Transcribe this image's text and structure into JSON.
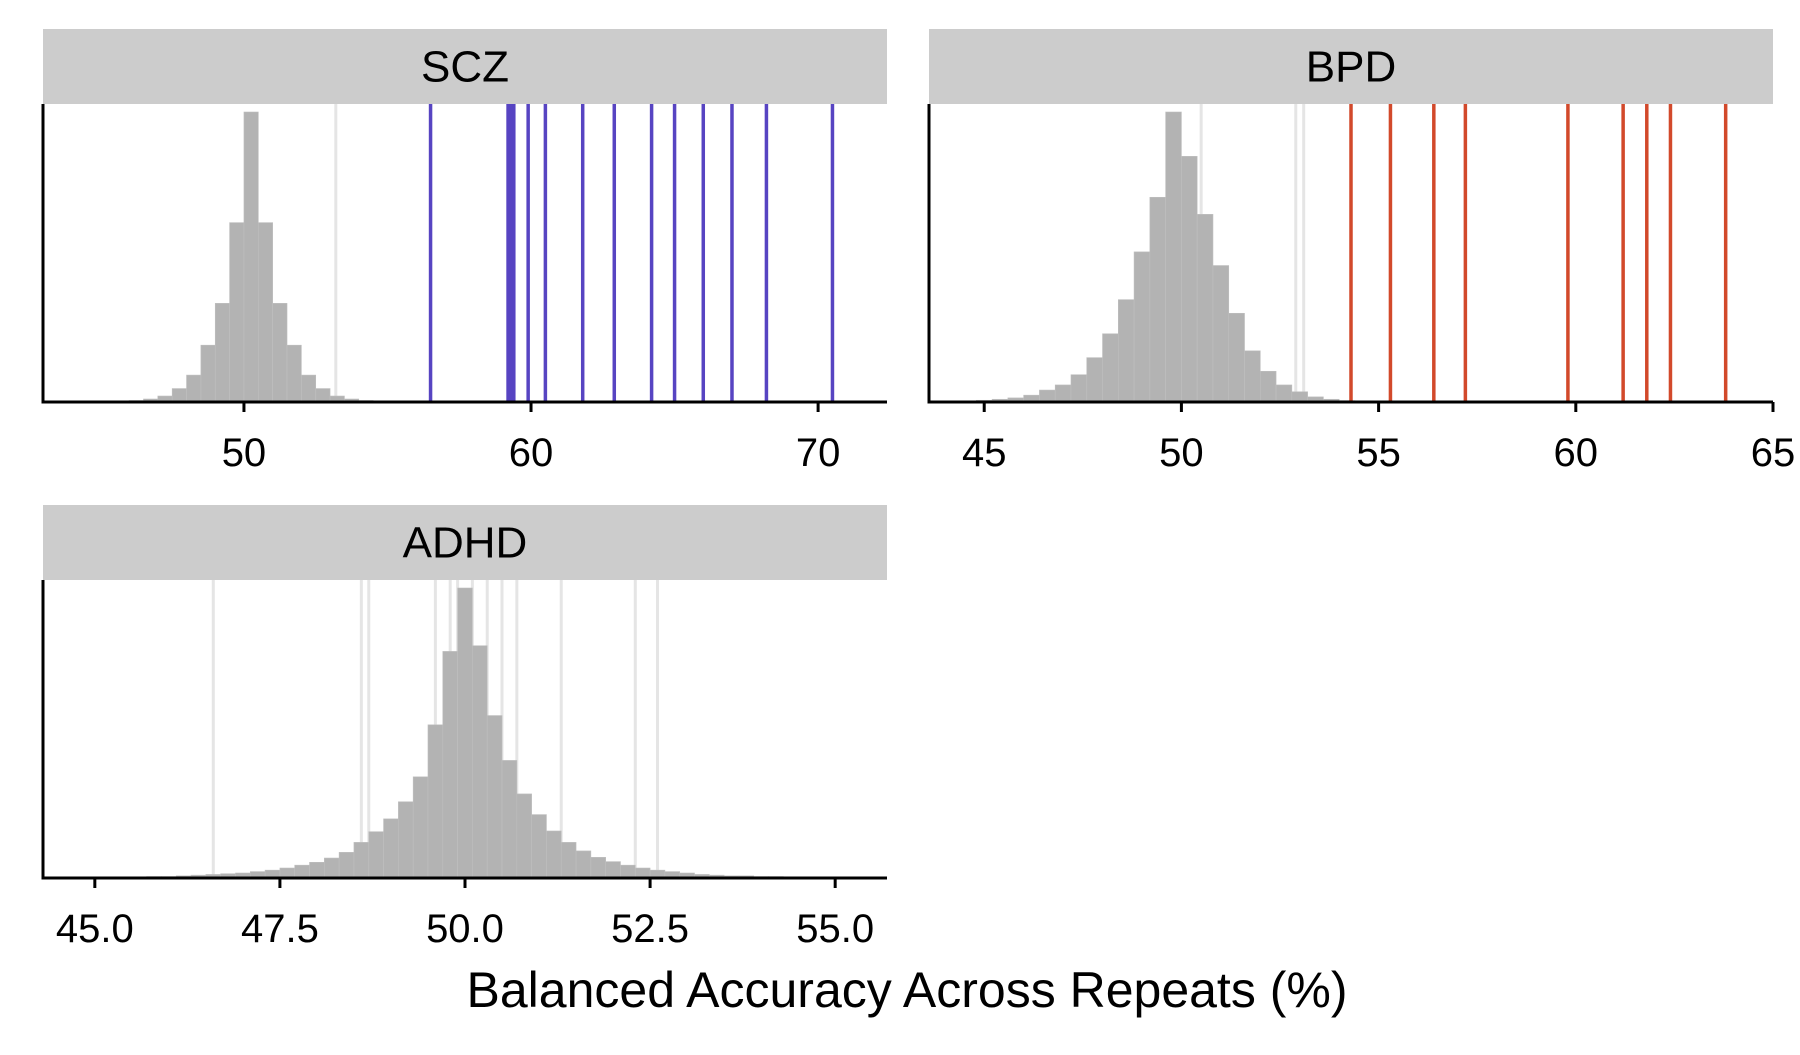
{
  "figure": {
    "xlabel": "Balanced Accuracy Across Repeats (%)"
  },
  "colors": {
    "strip": "#cccccc",
    "histogram": "#b3b3b3",
    "non_significant_line": "#e5e5e5",
    "SCZ": "#5744c2",
    "BPD": "#d2492b",
    "ADHD": "#e5e5e5"
  },
  "chart_data": [
    {
      "type": "histogram",
      "title": "SCZ",
      "xlim": [
        43,
        72.4
      ],
      "xticks": [
        50,
        60,
        70
      ],
      "xtick_labels": [
        "50",
        "60",
        "70"
      ],
      "null_distribution": {
        "bin_edges": [
          43,
          43.5,
          44,
          44.5,
          45,
          45.5,
          46,
          46.5,
          47,
          47.5,
          48,
          48.5,
          49,
          49.5,
          50,
          50.5,
          51,
          51.5,
          52,
          52.5,
          53,
          53.5,
          54,
          54.5,
          55,
          55.5,
          56,
          56.5
        ],
        "densities": [
          0,
          0,
          0,
          0,
          0.001,
          0.002,
          0.005,
          0.01,
          0.02,
          0.045,
          0.09,
          0.19,
          0.33,
          0.6,
          0.97,
          0.6,
          0.33,
          0.19,
          0.09,
          0.045,
          0.02,
          0.01,
          0.005,
          0.002,
          0.001,
          0,
          0
        ]
      },
      "null_threshold_lines": [
        53.2
      ],
      "observed_lines": [
        56.5,
        59.2,
        59.3,
        59.4,
        59.9,
        60.5,
        61.8,
        62.9,
        64.2,
        65.0,
        66.0,
        67.0,
        68.2,
        70.5
      ],
      "observed_color": "#5744c2"
    },
    {
      "type": "histogram",
      "title": "BPD",
      "xlim": [
        43.6,
        65
      ],
      "xticks": [
        45,
        50,
        55,
        60,
        65
      ],
      "xtick_labels": [
        "45",
        "50",
        "55",
        "60",
        "65"
      ],
      "null_distribution": {
        "bin_edges": [
          43.6,
          44,
          44.4,
          44.8,
          45.2,
          45.6,
          46,
          46.4,
          46.8,
          47.2,
          47.6,
          48,
          48.4,
          48.8,
          49.2,
          49.6,
          50,
          50.4,
          50.8,
          51.2,
          51.6,
          52,
          52.4,
          52.8,
          53.2,
          53.6,
          54,
          54.4,
          54.8
        ],
        "densities": [
          0,
          0.002,
          0.003,
          0.005,
          0.008,
          0.012,
          0.02,
          0.035,
          0.05,
          0.08,
          0.13,
          0.2,
          0.3,
          0.44,
          0.6,
          0.85,
          0.72,
          0.55,
          0.4,
          0.26,
          0.15,
          0.09,
          0.05,
          0.03,
          0.015,
          0.008,
          0.004,
          0.002
        ]
      },
      "null_threshold_lines": [
        50.5,
        52.9,
        53.1
      ],
      "observed_lines": [
        54.3,
        55.3,
        56.4,
        57.2,
        59.8,
        61.2,
        61.8,
        62.4,
        63.8
      ],
      "observed_color": "#d2492b"
    },
    {
      "type": "histogram",
      "title": "ADHD",
      "xlim": [
        44.3,
        55.7
      ],
      "xticks": [
        45.0,
        47.5,
        50.0,
        52.5,
        55.0
      ],
      "xtick_labels": [
        "45.0",
        "47.5",
        "50.0",
        "52.5",
        "55.0"
      ],
      "null_distribution": {
        "bin_edges": [
          44.7,
          44.9,
          45.1,
          45.3,
          45.5,
          45.7,
          45.9,
          46.1,
          46.3,
          46.5,
          46.7,
          46.9,
          47.1,
          47.3,
          47.5,
          47.7,
          47.9,
          48.1,
          48.3,
          48.5,
          48.7,
          48.9,
          49.1,
          49.3,
          49.5,
          49.7,
          49.9,
          50.1,
          50.3,
          50.5,
          50.7,
          50.9,
          51.1,
          51.3,
          51.5,
          51.7,
          51.9,
          52.1,
          52.3,
          52.5,
          52.7,
          52.9,
          53.1,
          53.3,
          53.5,
          53.7,
          53.9,
          54.1,
          54.3,
          54.5,
          54.7,
          54.9,
          55.1,
          55.3,
          55.5
        ],
        "densities": [
          0.001,
          0.001,
          0.001,
          0.001,
          0.001,
          0.002,
          0.002,
          0.003,
          0.004,
          0.005,
          0.006,
          0.007,
          0.009,
          0.011,
          0.014,
          0.018,
          0.022,
          0.028,
          0.036,
          0.05,
          0.065,
          0.083,
          0.107,
          0.142,
          0.215,
          0.318,
          0.407,
          0.326,
          0.228,
          0.165,
          0.118,
          0.089,
          0.066,
          0.05,
          0.038,
          0.029,
          0.023,
          0.018,
          0.014,
          0.011,
          0.009,
          0.007,
          0.005,
          0.004,
          0.003,
          0.003,
          0.002,
          0.002,
          0.001,
          0.001,
          0.001,
          0.001,
          0.001,
          0.001
        ]
      },
      "null_threshold_lines": [
        46.6,
        48.6,
        48.7,
        49.6,
        49.8,
        49.9,
        50.1,
        50.3,
        50.5,
        50.7,
        51.3,
        52.3,
        52.6
      ],
      "observed_lines": [],
      "observed_color": "#e5e5e5"
    }
  ]
}
